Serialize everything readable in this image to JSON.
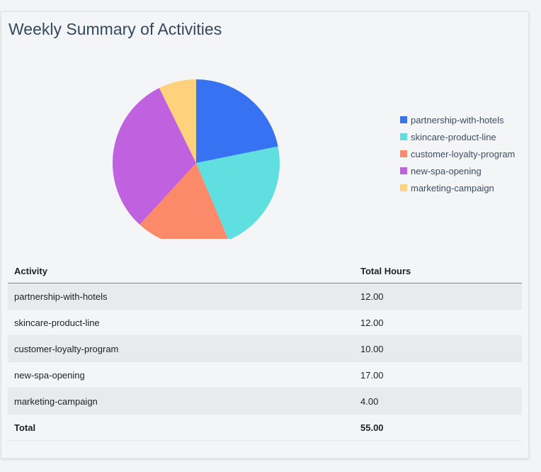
{
  "title": "Weekly Summary of Activities",
  "chart_data": {
    "type": "pie",
    "categories": [
      "partnership-with-hotels",
      "skincare-product-line",
      "customer-loyalty-program",
      "new-spa-opening",
      "marketing-campaign"
    ],
    "values": [
      12,
      12,
      10,
      17,
      4
    ],
    "colors": [
      "#3772f3",
      "#5fdfdf",
      "#fb8a6b",
      "#c061e0",
      "#fed27c"
    ],
    "legend_position": "right"
  },
  "table": {
    "headers": [
      "Activity",
      "Total Hours"
    ],
    "rows": [
      [
        "partnership-with-hotels",
        "12.00"
      ],
      [
        "skincare-product-line",
        "12.00"
      ],
      [
        "customer-loyalty-program",
        "10.00"
      ],
      [
        "new-spa-opening",
        "17.00"
      ],
      [
        "marketing-campaign",
        "4.00"
      ]
    ],
    "total": [
      "Total",
      "55.00"
    ]
  }
}
